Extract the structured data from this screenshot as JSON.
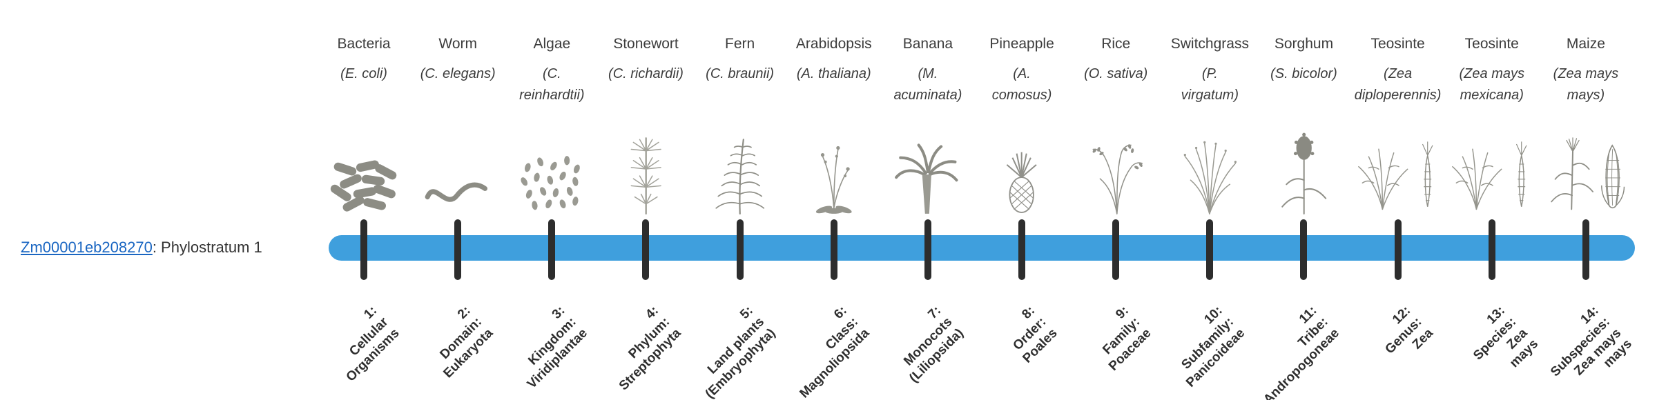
{
  "gene": {
    "id": "Zm00001eb208270",
    "suffix": ": Phylostratum 1"
  },
  "colors": {
    "bar": "#3f9fdd",
    "tick": "#2d2d2d",
    "link": "#1a66c2"
  },
  "strata": [
    {
      "common": "Bacteria",
      "scientific": "(E. coli)",
      "icon": "bacteria-icon",
      "label": "1:\nCellular\nOrganisms"
    },
    {
      "common": "Worm",
      "scientific": "(C. elegans)",
      "icon": "worm-icon",
      "label": "2:\nDomain:\nEukaryota"
    },
    {
      "common": "Algae",
      "scientific": "(C.\nreinhardtii)",
      "icon": "algae-icon",
      "label": "3:\nKingdom:\nViridiplantae"
    },
    {
      "common": "Stonewort",
      "scientific": "(C. richardii)",
      "icon": "stonewort-icon",
      "label": "4:\nPhylum:\nStreptophyta"
    },
    {
      "common": "Fern",
      "scientific": "(C. braunii)",
      "icon": "fern-icon",
      "label": "5:\nLand plants\n(Embryophyta)"
    },
    {
      "common": "Arabidopsis",
      "scientific": "(A. thaliana)",
      "icon": "arabidopsis-icon",
      "label": "6:\nClass:\nMagnoliopsida"
    },
    {
      "common": "Banana",
      "scientific": "(M.\nacuminata)",
      "icon": "banana-icon",
      "label": "7:\nMonocots\n(Liliopsida)"
    },
    {
      "common": "Pineapple",
      "scientific": "(A.\ncomosus)",
      "icon": "pineapple-icon",
      "label": "8:\nOrder:\nPoales"
    },
    {
      "common": "Rice",
      "scientific": "(O. sativa)",
      "icon": "rice-icon",
      "label": "9:\nFamily:\nPoaceae"
    },
    {
      "common": "Switchgrass",
      "scientific": "(P.\nvirgatum)",
      "icon": "switchgrass-icon",
      "label": "10:\nSubfamily:\nPanicoideae"
    },
    {
      "common": "Sorghum",
      "scientific": "(S. bicolor)",
      "icon": "sorghum-icon",
      "label": "11:\nTribe:\nAndropogoneae"
    },
    {
      "common": "Teosinte",
      "scientific": "(Zea\ndiploperennis)",
      "icon": "teosinte-icon",
      "label": "12:\nGenus:\nZea"
    },
    {
      "common": "Teosinte",
      "scientific": "(Zea mays\nmexicana)",
      "icon": "teosinte-icon",
      "label": "13:\nSpecies:\nZea\nmays"
    },
    {
      "common": "Maize",
      "scientific": "(Zea mays\nmays)",
      "icon": "maize-icon",
      "label": "14:\nSubspecies:\nZea mays\nmays"
    }
  ]
}
